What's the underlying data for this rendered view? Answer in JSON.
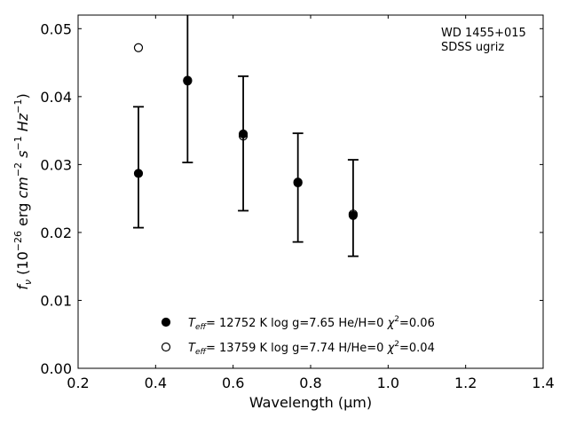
{
  "chart_data": {
    "type": "scatter",
    "title": "",
    "xlabel": "Wavelength (μm)",
    "ylabel": "f_ν (10^-26 erg cm^-2 s^-1 Hz^-1)",
    "xlim": [
      0.2,
      1.4
    ],
    "ylim": [
      0.0,
      0.052
    ],
    "xticks": [
      0.2,
      0.4,
      0.6,
      0.8,
      1.0,
      1.2,
      1.4
    ],
    "yticks": [
      0.0,
      0.01,
      0.02,
      0.03,
      0.04,
      0.05
    ],
    "xtick_labels": [
      "0.2",
      "0.4",
      "0.6",
      "0.8",
      "1.0",
      "1.2",
      "1.4"
    ],
    "ytick_labels": [
      "0.00",
      "0.01",
      "0.02",
      "0.03",
      "0.04",
      "0.05"
    ],
    "annotation": [
      "WD 1455+015",
      "SDSS ugriz"
    ],
    "observed": {
      "x": [
        0.3557,
        0.4825,
        0.6261,
        0.7672,
        0.9097
      ],
      "y": [
        0.0296,
        0.0414,
        0.0331,
        0.0266,
        0.0236
      ],
      "yerr": [
        0.0089,
        0.0111,
        0.0099,
        0.008,
        0.0071
      ]
    },
    "series": [
      {
        "name": "T_eff= 12752 K  log g=7.65  He/H=0  χ²=0.06",
        "marker": "filled-circle",
        "x": [
          0.3557,
          0.4825,
          0.6261,
          0.7672,
          0.9097
        ],
        "y": [
          0.0287,
          0.0424,
          0.0345,
          0.0274,
          0.0225
        ]
      },
      {
        "name": "T_eff= 13759 K  log g=7.74  H/He=0  χ²=0.04",
        "marker": "open-circle",
        "x": [
          0.3557,
          0.4825,
          0.6261,
          0.7672,
          0.9097
        ],
        "y": [
          0.0472,
          0.0423,
          0.0342,
          0.0273,
          0.0227
        ]
      }
    ],
    "legend_position": "bottom-center",
    "grid": false
  }
}
